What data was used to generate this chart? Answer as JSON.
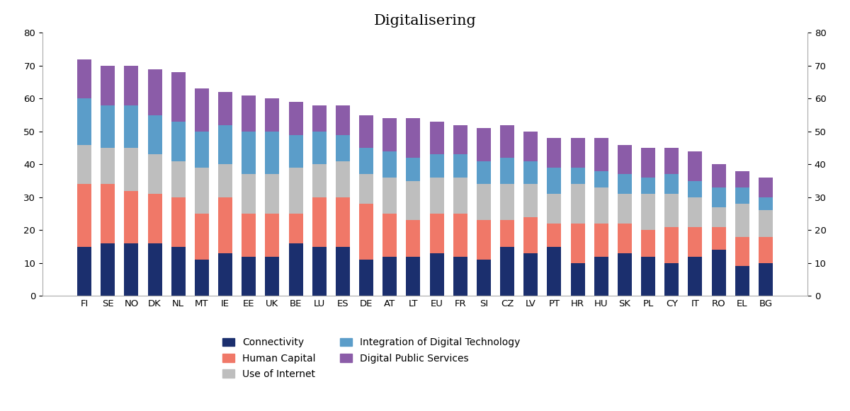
{
  "title": "Digitalisering",
  "categories": [
    "FI",
    "SE",
    "NO",
    "DK",
    "NL",
    "MT",
    "IE",
    "EE",
    "UK",
    "BE",
    "LU",
    "ES",
    "DE",
    "AT",
    "LT",
    "EU",
    "FR",
    "SI",
    "CZ",
    "LV",
    "PT",
    "HR",
    "HU",
    "SK",
    "PL",
    "CY",
    "IT",
    "RO",
    "EL",
    "BG"
  ],
  "connectivity": [
    15,
    16,
    16,
    16,
    15,
    11,
    13,
    12,
    12,
    16,
    15,
    15,
    11,
    12,
    12,
    13,
    12,
    11,
    15,
    13,
    15,
    10,
    12,
    13,
    12,
    10,
    12,
    14,
    9,
    10
  ],
  "human_capital": [
    19,
    18,
    16,
    15,
    15,
    14,
    17,
    13,
    13,
    9,
    15,
    15,
    17,
    13,
    11,
    12,
    13,
    12,
    8,
    11,
    7,
    12,
    10,
    9,
    8,
    11,
    9,
    7,
    9,
    8
  ],
  "use_of_internet": [
    12,
    11,
    13,
    12,
    11,
    14,
    10,
    12,
    12,
    14,
    10,
    11,
    9,
    11,
    12,
    11,
    11,
    11,
    11,
    10,
    9,
    12,
    11,
    9,
    11,
    10,
    9,
    6,
    10,
    8
  ],
  "integration_digital": [
    14,
    13,
    13,
    12,
    12,
    11,
    12,
    13,
    13,
    10,
    10,
    8,
    8,
    8,
    7,
    7,
    7,
    7,
    8,
    7,
    8,
    5,
    5,
    6,
    5,
    6,
    5,
    6,
    5,
    4
  ],
  "digital_public_services": [
    12,
    12,
    12,
    14,
    15,
    13,
    10,
    11,
    10,
    10,
    8,
    9,
    10,
    10,
    12,
    10,
    9,
    10,
    10,
    9,
    9,
    9,
    10,
    9,
    9,
    8,
    9,
    7,
    5,
    6
  ],
  "colors": {
    "connectivity": "#1b2f6e",
    "human_capital": "#f07868",
    "use_of_internet": "#bebebe",
    "integration_digital": "#5b9dc9",
    "digital_public_services": "#8b5ca8"
  },
  "legend_labels": {
    "connectivity": "Connectivity",
    "human_capital": "Human Capital",
    "use_of_internet": "Use of Internet",
    "integration_digital": "Integration of Digital Technology",
    "digital_public_services": "Digital Public Services"
  },
  "ylim": [
    0,
    80
  ],
  "yticks": [
    0,
    10,
    20,
    30,
    40,
    50,
    60,
    70,
    80
  ],
  "background_color": "#ffffff",
  "title_fontsize": 15
}
